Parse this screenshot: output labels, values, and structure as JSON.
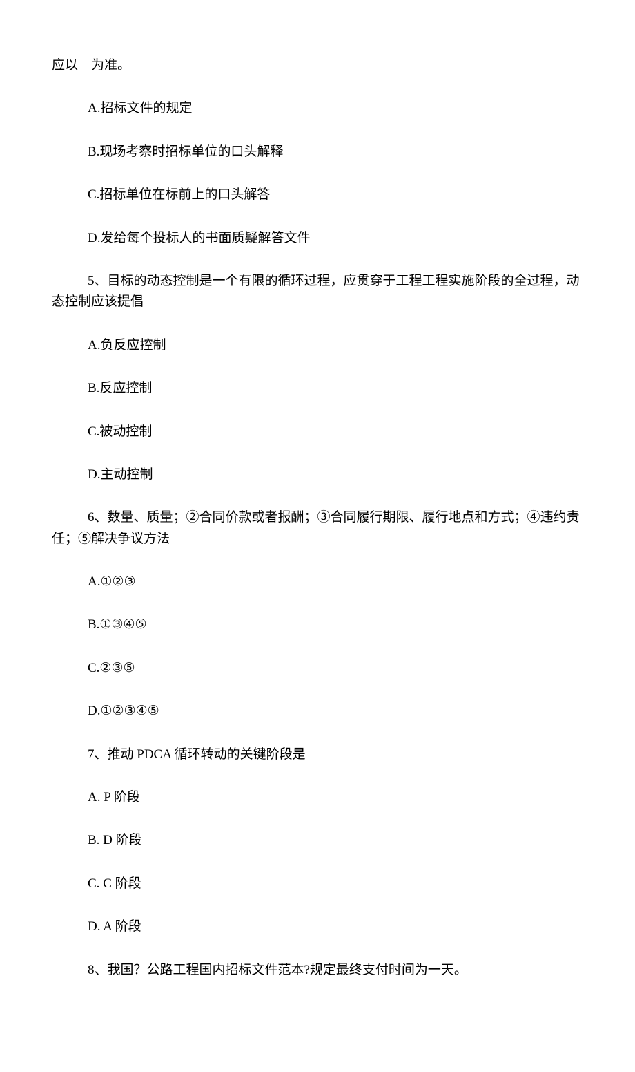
{
  "lines": [
    {
      "indent": "indent-0",
      "text": "应以―为准。"
    },
    {
      "indent": "indent-1",
      "text": "A.招标文件的规定"
    },
    {
      "indent": "indent-1",
      "text": "B.现场考察时招标单位的口头解释"
    },
    {
      "indent": "indent-1",
      "text": "C.招标单位在标前上的口头解答"
    },
    {
      "indent": "indent-1",
      "text": "D.发给每个投标人的书面质疑解答文件"
    },
    {
      "indent": "question",
      "text": "5、目标的动态控制是一个有限的循环过程，应贯穿于工程工程实施阶段的全过程，动态控制应该提倡"
    },
    {
      "indent": "indent-1",
      "text": "A.负反应控制"
    },
    {
      "indent": "indent-1",
      "text": "B.反应控制"
    },
    {
      "indent": "indent-1",
      "text": "C.被动控制"
    },
    {
      "indent": "indent-1",
      "text": "D.主动控制"
    },
    {
      "indent": "question",
      "text": "6、数量、质量；②合同价款或者报酬；③合同履行期限、履行地点和方式；④违约责任；⑤解决争议方法"
    },
    {
      "indent": "indent-1",
      "text": "A.①②③"
    },
    {
      "indent": "indent-1",
      "text": "B.①③④⑤"
    },
    {
      "indent": "indent-1",
      "text": "C.②③⑤"
    },
    {
      "indent": "indent-1",
      "text": "D.①②③④⑤"
    },
    {
      "indent": "indent-1",
      "text": "7、推动 PDCA 循环转动的关键阶段是"
    },
    {
      "indent": "indent-1",
      "text": "A.  P 阶段"
    },
    {
      "indent": "indent-1",
      "text": "B.  D 阶段"
    },
    {
      "indent": "indent-1",
      "text": "C.  C 阶段"
    },
    {
      "indent": "indent-1",
      "text": "D.  A 阶段"
    },
    {
      "indent": "indent-1",
      "text": "8、我国？公路工程国内招标文件范本?规定最终支付时间为一天。"
    }
  ]
}
